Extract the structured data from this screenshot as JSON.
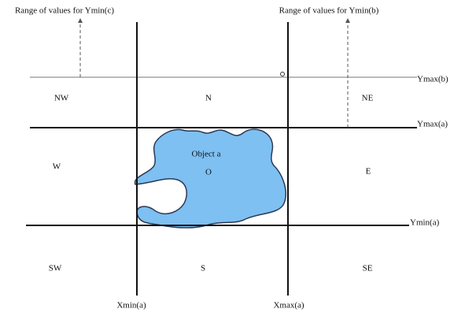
{
  "top_labels": {
    "range_c": "Range of values for Ymin(c)",
    "range_b": "Range of values for Ymin(b)"
  },
  "line_labels": {
    "ymax_b": "Ymax(b)",
    "ymax_a": "Ymax(a)",
    "ymin_a": "Ymin(a)",
    "xmin_a": "Xmin(a)",
    "xmax_a": "Xmax(a)"
  },
  "regions": {
    "nw": "NW",
    "n": "N",
    "ne": "NE",
    "w": "W",
    "o": "O",
    "e": "E",
    "sw": "SW",
    "s": "S",
    "se": "SE"
  },
  "object": {
    "label": "Object a"
  }
}
